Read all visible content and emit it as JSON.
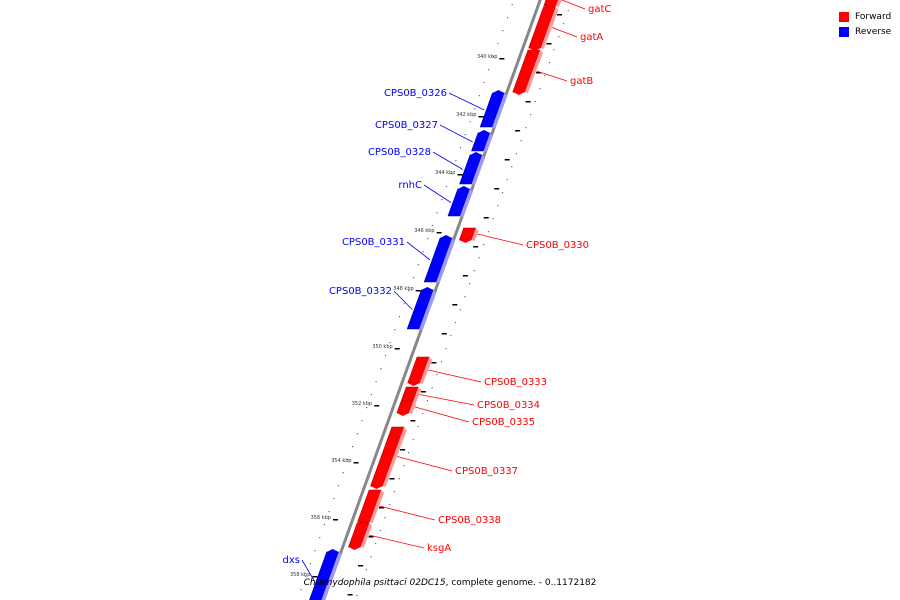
{
  "caption": {
    "organism": "Chlamydophila psittaci 02DC15",
    "rest": ", complete genome. - 0..1172182"
  },
  "legend": [
    {
      "label": "Forward",
      "color": "#ff0000"
    },
    {
      "label": "Reverse",
      "color": "#0000ff"
    }
  ],
  "colors": {
    "forward": "#ff0000",
    "reverse": "#0000ff",
    "backbone": "#888888"
  },
  "ticks": [
    "340 kbp",
    "342 kbp",
    "344 kbp",
    "346 kbp",
    "348 kbp",
    "350 kbp",
    "352 kbp",
    "354 kbp",
    "356 kbp",
    "358 kbp"
  ],
  "genes": [
    {
      "name": "gatC",
      "strand": "forward"
    },
    {
      "name": "gatA",
      "strand": "forward"
    },
    {
      "name": "gatB",
      "strand": "forward"
    },
    {
      "name": "CPS0B_0326",
      "strand": "reverse"
    },
    {
      "name": "CPS0B_0327",
      "strand": "reverse"
    },
    {
      "name": "CPS0B_0328",
      "strand": "reverse"
    },
    {
      "name": "rnhC",
      "strand": "reverse"
    },
    {
      "name": "CPS0B_0330",
      "strand": "forward"
    },
    {
      "name": "CPS0B_0331",
      "strand": "reverse"
    },
    {
      "name": "CPS0B_0332",
      "strand": "reverse"
    },
    {
      "name": "CPS0B_0333",
      "strand": "forward"
    },
    {
      "name": "CPS0B_0334",
      "strand": "forward"
    },
    {
      "name": "CPS0B_0335",
      "strand": "forward"
    },
    {
      "name": "CPS0B_0337",
      "strand": "forward"
    },
    {
      "name": "CPS0B_0338",
      "strand": "forward"
    },
    {
      "name": "ksgA",
      "strand": "forward"
    },
    {
      "name": "dxs",
      "strand": "reverse"
    }
  ]
}
